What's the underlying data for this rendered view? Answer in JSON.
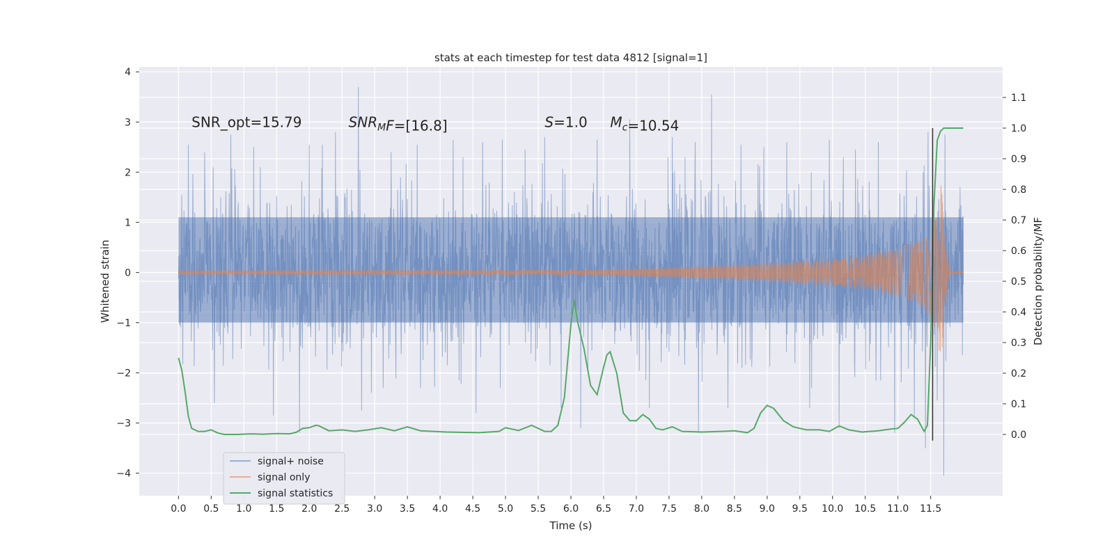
{
  "chart_data": {
    "type": "line",
    "title": "stats at each timestep for test data 4812 [signal=1]",
    "xlabel": "Time (s)",
    "ylabel": "Whitened strain",
    "y2label": "Detection probability/MF",
    "xlim": [
      -0.6,
      12.6
    ],
    "ylim": [
      -4.45,
      4.1
    ],
    "y2lim": [
      -0.2,
      1.2
    ],
    "xticks": [
      0.0,
      0.5,
      1.0,
      1.5,
      2.0,
      2.5,
      3.0,
      3.5,
      4.0,
      4.5,
      5.0,
      5.5,
      6.0,
      6.5,
      7.0,
      7.5,
      8.0,
      8.5,
      9.0,
      9.5,
      10.0,
      10.5,
      11.0,
      11.5
    ],
    "xtick_labels": [
      "0.0",
      "0.5",
      "1.0",
      "1.5",
      "2.0",
      "2.5",
      "3.0",
      "3.5",
      "4.0",
      "4.5",
      "5.0",
      "5.5",
      "6.0",
      "6.5",
      "7.0",
      "7.5",
      "8.0",
      "8.5",
      "9.0",
      "9.5",
      "10.0",
      "10.5",
      "11.0",
      "11.5"
    ],
    "yticks": [
      -4,
      -3,
      -2,
      -1,
      0,
      1,
      2,
      3,
      4
    ],
    "ytick_labels": [
      "−4",
      "−3",
      "−2",
      "−1",
      "0",
      "1",
      "2",
      "3",
      "4"
    ],
    "y2ticks": [
      0.0,
      0.1,
      0.2,
      0.3,
      0.4,
      0.5,
      0.6,
      0.7,
      0.8,
      0.9,
      1.0,
      1.1
    ],
    "y2tick_labels": [
      "0.0",
      "0.1",
      "0.2",
      "0.3",
      "0.4",
      "0.5",
      "0.6",
      "0.7",
      "0.8",
      "0.9",
      "1.0",
      "1.1"
    ],
    "grid": true,
    "legend_position": "lower-left",
    "background": "#eaeaf2",
    "annotations": [
      {
        "id": "snr-opt",
        "text": "SNR_opt=15.79",
        "x": 0.2,
        "y": 3.0
      },
      {
        "id": "snr-mf",
        "segments": [
          {
            "t": "SNR",
            "i": true
          },
          {
            "t": "M",
            "i": true,
            "sub": true
          },
          {
            "t": "F",
            "i": true
          },
          {
            "t": "=[16.8]"
          }
        ],
        "x": 2.6,
        "y": 3.0
      },
      {
        "id": "s-value",
        "segments": [
          {
            "t": "S",
            "i": true
          },
          {
            "t": "=1.0"
          }
        ],
        "x": 5.6,
        "y": 3.0
      },
      {
        "id": "mc-value",
        "segments": [
          {
            "t": "M",
            "i": true
          },
          {
            "t": "c",
            "i": true,
            "sub": true
          },
          {
            "t": "=10.54"
          }
        ],
        "x": 6.6,
        "y": 3.0
      }
    ],
    "series": [
      {
        "name": "signal+ noise",
        "color": "#4c72b0",
        "opacity": 0.5,
        "axis": "left",
        "x_range": [
          0.0,
          12.0
        ],
        "band_core": [
          -1.0,
          1.1
        ],
        "band_typical": [
          -1.5,
          1.65
        ],
        "spike_peaks": [
          {
            "x": 0.05,
            "y": 1.55
          },
          {
            "x": 0.15,
            "y": 2.55
          },
          {
            "x": 0.4,
            "y": 2.4
          },
          {
            "x": 0.55,
            "y": -2.6
          },
          {
            "x": 0.8,
            "y": 2.75
          },
          {
            "x": 1.15,
            "y": 2.5
          },
          {
            "x": 1.45,
            "y": -2.85
          },
          {
            "x": 1.85,
            "y": -3.2
          },
          {
            "x": 2.0,
            "y": 2.55
          },
          {
            "x": 2.2,
            "y": 2.55
          },
          {
            "x": 2.4,
            "y": 2.8
          },
          {
            "x": 2.75,
            "y": 3.7
          },
          {
            "x": 2.8,
            "y": -2.75
          },
          {
            "x": 2.95,
            "y": -2.4
          },
          {
            "x": 3.25,
            "y": 2.4
          },
          {
            "x": 3.65,
            "y": 2.55
          },
          {
            "x": 4.2,
            "y": 2.65
          },
          {
            "x": 4.55,
            "y": -2.8
          },
          {
            "x": 4.65,
            "y": 2.6
          },
          {
            "x": 4.95,
            "y": 2.65
          },
          {
            "x": 5.3,
            "y": 2.45
          },
          {
            "x": 5.6,
            "y": 2.7
          },
          {
            "x": 5.85,
            "y": -2.7
          },
          {
            "x": 6.15,
            "y": -3.1
          },
          {
            "x": 6.4,
            "y": 2.65
          },
          {
            "x": 6.9,
            "y": 3.05
          },
          {
            "x": 7.2,
            "y": -2.7
          },
          {
            "x": 7.55,
            "y": 2.7
          },
          {
            "x": 7.9,
            "y": 2.6
          },
          {
            "x": 7.95,
            "y": -3.2
          },
          {
            "x": 8.15,
            "y": 3.55
          },
          {
            "x": 8.4,
            "y": -2.7
          },
          {
            "x": 8.6,
            "y": 2.55
          },
          {
            "x": 8.95,
            "y": 2.5
          },
          {
            "x": 9.3,
            "y": 2.6
          },
          {
            "x": 9.65,
            "y": -2.7
          },
          {
            "x": 9.95,
            "y": 2.65
          },
          {
            "x": 10.1,
            "y": -3.1
          },
          {
            "x": 10.35,
            "y": 2.45
          },
          {
            "x": 10.7,
            "y": 2.6
          },
          {
            "x": 10.95,
            "y": -3.2
          },
          {
            "x": 11.25,
            "y": -2.9
          },
          {
            "x": 11.42,
            "y": -3.5
          },
          {
            "x": 11.46,
            "y": 2.8
          },
          {
            "x": 11.6,
            "y": -2.55
          },
          {
            "x": 11.7,
            "y": -4.05
          },
          {
            "x": 11.72,
            "y": 2.75
          },
          {
            "x": 11.95,
            "y": 1.7
          }
        ]
      },
      {
        "name": "signal only",
        "color": "#dd8452",
        "opacity": 0.6,
        "axis": "left",
        "x_range": [
          0.0,
          12.0
        ],
        "amplitude_envelope": [
          [
            0.0,
            0.04
          ],
          [
            6.0,
            0.05
          ],
          [
            7.5,
            0.1
          ],
          [
            9.0,
            0.18
          ],
          [
            10.0,
            0.27
          ],
          [
            10.5,
            0.35
          ],
          [
            11.0,
            0.48
          ],
          [
            11.4,
            0.7
          ],
          [
            11.6,
            1.2
          ],
          [
            11.65,
            1.85
          ],
          [
            11.7,
            1.4
          ],
          [
            11.75,
            0.3
          ],
          [
            11.8,
            0.03
          ],
          [
            12.0,
            0.03
          ]
        ]
      },
      {
        "name": "signal statistics",
        "color": "#55a868",
        "axis": "right",
        "points": [
          [
            0.0,
            0.25
          ],
          [
            0.05,
            0.21
          ],
          [
            0.1,
            0.14
          ],
          [
            0.15,
            0.06
          ],
          [
            0.2,
            0.02
          ],
          [
            0.3,
            0.01
          ],
          [
            0.4,
            0.01
          ],
          [
            0.5,
            0.015
          ],
          [
            0.6,
            0.005
          ],
          [
            0.7,
            0.0
          ],
          [
            0.9,
            0.0
          ],
          [
            1.1,
            0.002
          ],
          [
            1.3,
            0.001
          ],
          [
            1.5,
            0.003
          ],
          [
            1.7,
            0.002
          ],
          [
            1.8,
            0.007
          ],
          [
            1.9,
            0.02
          ],
          [
            2.0,
            0.022
          ],
          [
            2.1,
            0.03
          ],
          [
            2.15,
            0.028
          ],
          [
            2.3,
            0.012
          ],
          [
            2.5,
            0.015
          ],
          [
            2.7,
            0.01
          ],
          [
            2.9,
            0.015
          ],
          [
            3.1,
            0.022
          ],
          [
            3.3,
            0.012
          ],
          [
            3.5,
            0.025
          ],
          [
            3.7,
            0.012
          ],
          [
            3.9,
            0.01
          ],
          [
            4.1,
            0.008
          ],
          [
            4.3,
            0.007
          ],
          [
            4.6,
            0.006
          ],
          [
            4.9,
            0.01
          ],
          [
            5.0,
            0.022
          ],
          [
            5.2,
            0.013
          ],
          [
            5.4,
            0.03
          ],
          [
            5.6,
            0.01
          ],
          [
            5.7,
            0.01
          ],
          [
            5.8,
            0.03
          ],
          [
            5.9,
            0.12
          ],
          [
            6.0,
            0.36
          ],
          [
            6.05,
            0.44
          ],
          [
            6.1,
            0.37
          ],
          [
            6.2,
            0.28
          ],
          [
            6.3,
            0.16
          ],
          [
            6.4,
            0.13
          ],
          [
            6.5,
            0.22
          ],
          [
            6.55,
            0.26
          ],
          [
            6.6,
            0.27
          ],
          [
            6.7,
            0.2
          ],
          [
            6.8,
            0.07
          ],
          [
            6.9,
            0.045
          ],
          [
            7.0,
            0.045
          ],
          [
            7.1,
            0.065
          ],
          [
            7.2,
            0.05
          ],
          [
            7.3,
            0.02
          ],
          [
            7.4,
            0.015
          ],
          [
            7.55,
            0.025
          ],
          [
            7.7,
            0.01
          ],
          [
            8.0,
            0.008
          ],
          [
            8.3,
            0.01
          ],
          [
            8.5,
            0.012
          ],
          [
            8.7,
            0.006
          ],
          [
            8.8,
            0.02
          ],
          [
            8.9,
            0.07
          ],
          [
            9.0,
            0.095
          ],
          [
            9.1,
            0.085
          ],
          [
            9.25,
            0.045
          ],
          [
            9.4,
            0.025
          ],
          [
            9.6,
            0.015
          ],
          [
            9.8,
            0.015
          ],
          [
            9.95,
            0.01
          ],
          [
            10.1,
            0.028
          ],
          [
            10.25,
            0.015
          ],
          [
            10.45,
            0.008
          ],
          [
            10.7,
            0.012
          ],
          [
            10.9,
            0.018
          ],
          [
            11.0,
            0.02
          ],
          [
            11.1,
            0.04
          ],
          [
            11.2,
            0.065
          ],
          [
            11.3,
            0.05
          ],
          [
            11.4,
            0.01
          ],
          [
            11.45,
            0.03
          ],
          [
            11.5,
            0.3
          ],
          [
            11.55,
            0.75
          ],
          [
            11.6,
            0.96
          ],
          [
            11.65,
            0.99
          ],
          [
            11.7,
            1.0
          ],
          [
            11.85,
            1.0
          ],
          [
            12.0,
            1.0
          ]
        ]
      }
    ],
    "vertical_lines": [
      {
        "x": 11.53,
        "color": "#333333"
      }
    ]
  }
}
